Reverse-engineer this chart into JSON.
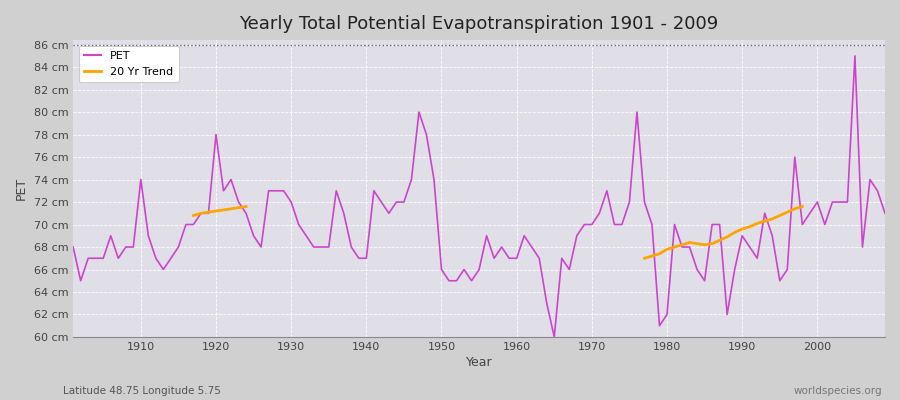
{
  "title": "Yearly Total Potential Evapotranspiration 1901 - 2009",
  "ylabel": "PET",
  "xlabel": "Year",
  "bottom_left": "Latitude 48.75 Longitude 5.75",
  "bottom_right": "worldspecies.org",
  "pet_color": "#cc44cc",
  "trend_color": "#ffa500",
  "fig_bg_color": "#d0d0d0",
  "plot_bg_color": "#e0dfe8",
  "ylim_min": 60,
  "ylim_max": 86,
  "ytick_step": 2,
  "xlim_min": 1901,
  "xlim_max": 2009,
  "years": [
    1901,
    1902,
    1903,
    1904,
    1905,
    1906,
    1907,
    1908,
    1909,
    1910,
    1911,
    1912,
    1913,
    1914,
    1915,
    1916,
    1917,
    1918,
    1919,
    1920,
    1921,
    1922,
    1923,
    1924,
    1925,
    1926,
    1927,
    1928,
    1929,
    1930,
    1931,
    1932,
    1933,
    1934,
    1935,
    1936,
    1937,
    1938,
    1939,
    1940,
    1941,
    1942,
    1943,
    1944,
    1945,
    1946,
    1947,
    1948,
    1949,
    1950,
    1951,
    1952,
    1953,
    1954,
    1955,
    1956,
    1957,
    1958,
    1959,
    1960,
    1961,
    1962,
    1963,
    1964,
    1965,
    1966,
    1967,
    1968,
    1969,
    1970,
    1971,
    1972,
    1973,
    1974,
    1975,
    1976,
    1977,
    1978,
    1979,
    1980,
    1981,
    1982,
    1983,
    1984,
    1985,
    1986,
    1987,
    1988,
    1989,
    1990,
    1991,
    1992,
    1993,
    1994,
    1995,
    1996,
    1997,
    1998,
    1999,
    2000,
    2001,
    2002,
    2003,
    2004,
    2005,
    2006,
    2007,
    2008,
    2009
  ],
  "pet_values": [
    68,
    65,
    67,
    67,
    67,
    69,
    67,
    68,
    68,
    74,
    69,
    67,
    66,
    67,
    68,
    70,
    70,
    71,
    71,
    78,
    73,
    74,
    72,
    71,
    69,
    68,
    73,
    73,
    73,
    72,
    70,
    69,
    68,
    68,
    68,
    73,
    71,
    68,
    67,
    67,
    73,
    72,
    71,
    72,
    72,
    74,
    80,
    78,
    74,
    66,
    65,
    65,
    66,
    65,
    66,
    69,
    67,
    68,
    67,
    67,
    69,
    68,
    67,
    63,
    60,
    67,
    66,
    69,
    70,
    70,
    71,
    73,
    70,
    70,
    72,
    80,
    72,
    70,
    61,
    62,
    70,
    68,
    68,
    66,
    65,
    70,
    70,
    62,
    66,
    69,
    68,
    67,
    71,
    69,
    65,
    66,
    76,
    70,
    71,
    72,
    70,
    72,
    72,
    72,
    85,
    68,
    74,
    73,
    71
  ],
  "trend_seg1_years": [
    1917,
    1918,
    1919,
    1920,
    1921,
    1922,
    1923,
    1924
  ],
  "trend_seg1_values": [
    70.8,
    71.0,
    71.1,
    71.2,
    71.3,
    71.4,
    71.5,
    71.6
  ],
  "trend_seg2_years": [
    1977,
    1978,
    1979,
    1980,
    1981,
    1982,
    1983,
    1984,
    1985,
    1986,
    1987,
    1988,
    1989,
    1990,
    1991,
    1992,
    1993,
    1994,
    1995,
    1996,
    1997,
    1998
  ],
  "trend_seg2_values": [
    67.0,
    67.2,
    67.4,
    67.8,
    68.0,
    68.2,
    68.4,
    68.3,
    68.2,
    68.3,
    68.6,
    68.9,
    69.3,
    69.6,
    69.8,
    70.1,
    70.3,
    70.5,
    70.8,
    71.1,
    71.4,
    71.6
  ]
}
